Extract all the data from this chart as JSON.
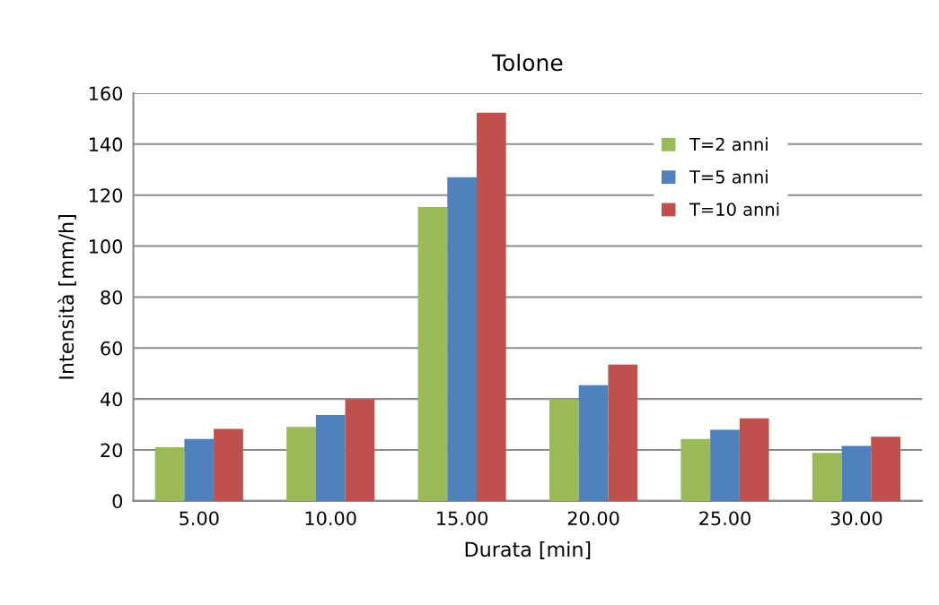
{
  "chart_data": {
    "type": "bar",
    "title": "Tolone",
    "xlabel": "Durata [min]",
    "ylabel": "Intensità [mm/h]",
    "categories": [
      "5.00",
      "10.00",
      "15.00",
      "20.00",
      "25.00",
      "30.00"
    ],
    "series": [
      {
        "name": "T=2 anni",
        "color": "#9bbb59",
        "values": [
          21.1,
          29.1,
          115.3,
          39.9,
          24.3,
          18.9
        ]
      },
      {
        "name": "T=5 anni",
        "color": "#4f81bd",
        "values": [
          24.3,
          33.7,
          127.0,
          45.4,
          27.9,
          21.6
        ]
      },
      {
        "name": "T=10 anni",
        "color": "#c0504d",
        "values": [
          28.3,
          39.9,
          152.3,
          53.5,
          32.4,
          25.2
        ]
      }
    ],
    "ylim": [
      0,
      160
    ],
    "yticks": [
      0,
      20,
      40,
      60,
      80,
      100,
      120,
      140,
      160
    ],
    "grid": "y",
    "legend": "top right"
  }
}
